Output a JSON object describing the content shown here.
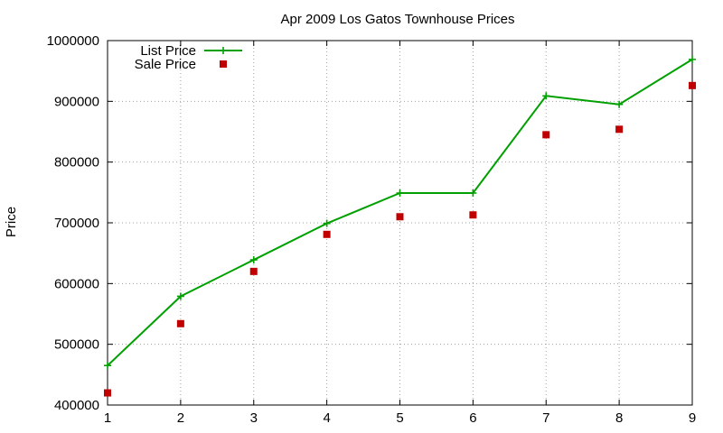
{
  "chart_data": {
    "type": "line",
    "title": "Apr 2009 Los Gatos Townhouse Prices",
    "xlabel": "",
    "ylabel": "Price",
    "x": [
      1,
      2,
      3,
      4,
      5,
      6,
      7,
      8,
      9
    ],
    "xlim": [
      1,
      9
    ],
    "ylim": [
      400000,
      1000000
    ],
    "xticks": [
      1,
      2,
      3,
      4,
      5,
      6,
      7,
      8,
      9
    ],
    "yticks": [
      400000,
      500000,
      600000,
      700000,
      800000,
      900000,
      1000000
    ],
    "grid": true,
    "legend_position": "top-left",
    "series": [
      {
        "name": "List Price",
        "style": "line-points",
        "color": "#00a000",
        "values": [
          465000,
          579000,
          639000,
          699000,
          749000,
          749000,
          909000,
          895000,
          969000
        ]
      },
      {
        "name": "Sale Price",
        "style": "points",
        "color": "#c00000",
        "values": [
          420000,
          534000,
          620000,
          681000,
          710000,
          713000,
          845000,
          854000,
          926000
        ]
      }
    ]
  }
}
